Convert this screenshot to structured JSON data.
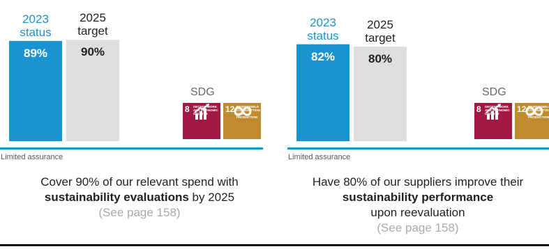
{
  "colors": {
    "status": "#1a93d1",
    "target": "#dedede",
    "sdg8": "#a21942",
    "sdg12": "#bf8b2e",
    "rule": "#1a93d1",
    "bottom_rule": "#111111"
  },
  "sdg_label": "SDG",
  "sdg_tiles": [
    {
      "number": "8",
      "title": "Decent work and economic growth",
      "icon": "growth-chart-icon"
    },
    {
      "number": "12",
      "title": "Responsible consumption and production",
      "icon": "infinity-loop-icon"
    }
  ],
  "chart_data": [
    {
      "type": "bar",
      "categories": [
        "2023 status",
        "2025 target"
      ],
      "category_lines": [
        [
          "2023",
          "status"
        ],
        [
          "2025",
          "target"
        ]
      ],
      "values": [
        89,
        90
      ],
      "value_labels": [
        "89%",
        "90%"
      ],
      "ylim": [
        0,
        100
      ],
      "assurance": "Limited assurance",
      "description": {
        "lines": [
          {
            "parts": [
              {
                "text": "Cover 90% of our relevant spend with",
                "bold": false
              }
            ]
          },
          {
            "parts": [
              {
                "text": "sustainability evaluations",
                "bold": true
              },
              {
                "text": " by 2025",
                "bold": false
              }
            ]
          }
        ],
        "reference": "(See page 158)"
      }
    },
    {
      "type": "bar",
      "categories": [
        "2023 status",
        "2025 target"
      ],
      "category_lines": [
        [
          "2023",
          "status"
        ],
        [
          "2025",
          "target"
        ]
      ],
      "values": [
        82,
        80
      ],
      "value_labels": [
        "82%",
        "80%"
      ],
      "ylim": [
        0,
        100
      ],
      "assurance": "Limited assurance",
      "description": {
        "lines": [
          {
            "parts": [
              {
                "text": "Have 80% of our suppliers improve their",
                "bold": false
              }
            ]
          },
          {
            "parts": [
              {
                "text": "sustainability performance",
                "bold": true
              }
            ]
          },
          {
            "parts": [
              {
                "text": "upon reevaluation",
                "bold": false
              }
            ]
          }
        ],
        "reference": "(See page 158)"
      }
    }
  ]
}
